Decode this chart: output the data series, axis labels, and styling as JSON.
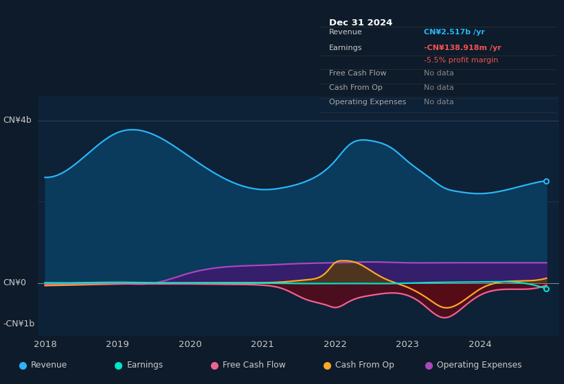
{
  "bg_color": "#0d1b2a",
  "plot_bg_color": "#0d2137",
  "y_label_top": "CN¥4b",
  "y_label_mid": "CN¥0",
  "y_label_bot": "-CN¥1b",
  "x_ticks": [
    2018,
    2019,
    2020,
    2021,
    2022,
    2023,
    2024
  ],
  "revenue_x": [
    2018.0,
    2018.4,
    2019.0,
    2019.5,
    2020.0,
    2020.5,
    2021.0,
    2021.3,
    2021.6,
    2022.0,
    2022.2,
    2022.5,
    2022.8,
    2023.0,
    2023.3,
    2023.5,
    2023.7,
    2024.0,
    2024.5,
    2024.92
  ],
  "revenue_y": [
    2.6,
    2.9,
    3.7,
    3.65,
    3.1,
    2.55,
    2.3,
    2.35,
    2.5,
    3.0,
    3.4,
    3.5,
    3.3,
    3.0,
    2.6,
    2.35,
    2.25,
    2.2,
    2.35,
    2.517
  ],
  "earnings_x": [
    2018.0,
    2018.5,
    2019.0,
    2019.5,
    2020.0,
    2020.5,
    2021.0,
    2021.5,
    2022.0,
    2022.2,
    2022.5,
    2022.8,
    2023.0,
    2023.5,
    2024.0,
    2024.5,
    2024.92
  ],
  "earnings_y": [
    0.01,
    0.01,
    0.02,
    0.01,
    0.01,
    0.005,
    0.0,
    -0.01,
    -0.01,
    -0.01,
    -0.01,
    -0.01,
    0.0,
    0.02,
    0.03,
    0.02,
    -0.14
  ],
  "fcf_x": [
    2018.0,
    2018.5,
    2019.0,
    2019.5,
    2020.0,
    2020.5,
    2021.0,
    2021.3,
    2021.6,
    2021.9,
    2022.0,
    2022.2,
    2022.5,
    2022.7,
    2023.0,
    2023.2,
    2023.5,
    2023.8,
    2024.0,
    2024.4,
    2024.92
  ],
  "fcf_y": [
    -0.03,
    -0.02,
    -0.02,
    -0.02,
    -0.02,
    -0.03,
    -0.05,
    -0.15,
    -0.4,
    -0.55,
    -0.6,
    -0.45,
    -0.3,
    -0.25,
    -0.3,
    -0.5,
    -0.85,
    -0.55,
    -0.3,
    -0.15,
    -0.05
  ],
  "cashop_x": [
    2018.0,
    2018.5,
    2019.0,
    2019.5,
    2020.0,
    2020.5,
    2021.0,
    2021.3,
    2021.6,
    2021.9,
    2022.0,
    2022.1,
    2022.3,
    2022.5,
    2022.7,
    2023.0,
    2023.3,
    2023.5,
    2023.8,
    2024.0,
    2024.5,
    2024.92
  ],
  "cashop_y": [
    -0.06,
    -0.04,
    -0.02,
    -0.01,
    0.0,
    0.01,
    0.01,
    0.03,
    0.08,
    0.3,
    0.5,
    0.55,
    0.5,
    0.3,
    0.1,
    -0.1,
    -0.4,
    -0.6,
    -0.4,
    -0.15,
    0.05,
    0.12
  ],
  "opex_x": [
    2018.0,
    2018.5,
    2019.0,
    2019.5,
    2020.0,
    2020.2,
    2020.5,
    2021.0,
    2021.5,
    2022.0,
    2022.5,
    2023.0,
    2023.5,
    2024.0,
    2024.5,
    2024.92
  ],
  "opex_y": [
    0.0,
    0.0,
    0.0,
    0.0,
    0.25,
    0.33,
    0.4,
    0.44,
    0.48,
    0.5,
    0.52,
    0.5,
    0.5,
    0.5,
    0.5,
    0.5
  ],
  "revenue_color": "#29b6f6",
  "earnings_color": "#00e5cc",
  "fcf_color": "#f06292",
  "cashop_color": "#ffa726",
  "opex_color": "#ab47bc",
  "legend_items": [
    "Revenue",
    "Earnings",
    "Free Cash Flow",
    "Cash From Op",
    "Operating Expenses"
  ],
  "legend_colors": [
    "#29b6f6",
    "#00e5cc",
    "#f06292",
    "#ffa726",
    "#ab47bc"
  ],
  "info_box": {
    "title": "Dec 31 2024",
    "rows": [
      {
        "label": "Revenue",
        "value": "CN¥2.517b /yr",
        "value_color": "#29b6f6",
        "label_color": "#cccccc"
      },
      {
        "label": "Earnings",
        "value": "-CN¥138.918m /yr",
        "value_color": "#ef5350",
        "label_color": "#cccccc"
      },
      {
        "label": "",
        "value": "-5.5% profit margin",
        "value_color": "#ef5350",
        "label_color": "#cccccc"
      },
      {
        "label": "Free Cash Flow",
        "value": "No data",
        "value_color": "#888888",
        "label_color": "#aaaaaa"
      },
      {
        "label": "Cash From Op",
        "value": "No data",
        "value_color": "#888888",
        "label_color": "#aaaaaa"
      },
      {
        "label": "Operating Expenses",
        "value": "No data",
        "value_color": "#888888",
        "label_color": "#aaaaaa"
      }
    ]
  }
}
